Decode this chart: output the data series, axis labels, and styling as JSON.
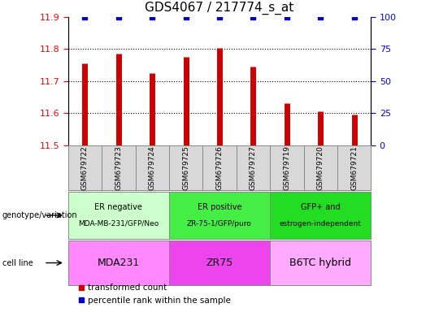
{
  "title": "GDS4067 / 217774_s_at",
  "samples": [
    "GSM679722",
    "GSM679723",
    "GSM679724",
    "GSM679725",
    "GSM679726",
    "GSM679727",
    "GSM679719",
    "GSM679720",
    "GSM679721"
  ],
  "bar_values": [
    11.755,
    11.785,
    11.725,
    11.775,
    11.805,
    11.745,
    11.63,
    11.605,
    11.595
  ],
  "percentile_values": [
    100,
    100,
    100,
    100,
    100,
    100,
    100,
    100,
    100
  ],
  "bar_color": "#cc0000",
  "percentile_color": "#0000cc",
  "ylim_left": [
    11.5,
    11.9
  ],
  "ylim_right": [
    0,
    100
  ],
  "yticks_left": [
    11.5,
    11.6,
    11.7,
    11.8,
    11.9
  ],
  "yticks_right": [
    0,
    25,
    50,
    75,
    100
  ],
  "grid_lines": [
    11.6,
    11.7,
    11.8
  ],
  "groups": [
    {
      "label_top": "ER negative",
      "label_bot": "MDA-MB-231/GFP/Neo",
      "cell_line": "MDA231",
      "start": 0,
      "end": 3,
      "geno_color": "#ccffcc",
      "cell_color": "#ff88ff"
    },
    {
      "label_top": "ER positive",
      "label_bot": "ZR-75-1/GFP/puro",
      "cell_line": "ZR75",
      "start": 3,
      "end": 6,
      "geno_color": "#44ee44",
      "cell_color": "#ee44ee"
    },
    {
      "label_top": "GFP+ and",
      "label_bot": "estrogen-independent",
      "cell_line": "B6TC hybrid",
      "start": 6,
      "end": 9,
      "geno_color": "#22dd22",
      "cell_color": "#ffaaff"
    }
  ],
  "legend_items": [
    {
      "label": "transformed count",
      "color": "#cc0000"
    },
    {
      "label": "percentile rank within the sample",
      "color": "#0000cc"
    }
  ],
  "row_label_geno": "genotype/variation",
  "row_label_cell": "cell line",
  "sample_bg_color": "#d8d8d8",
  "sample_divider_color": "#aaaaaa"
}
